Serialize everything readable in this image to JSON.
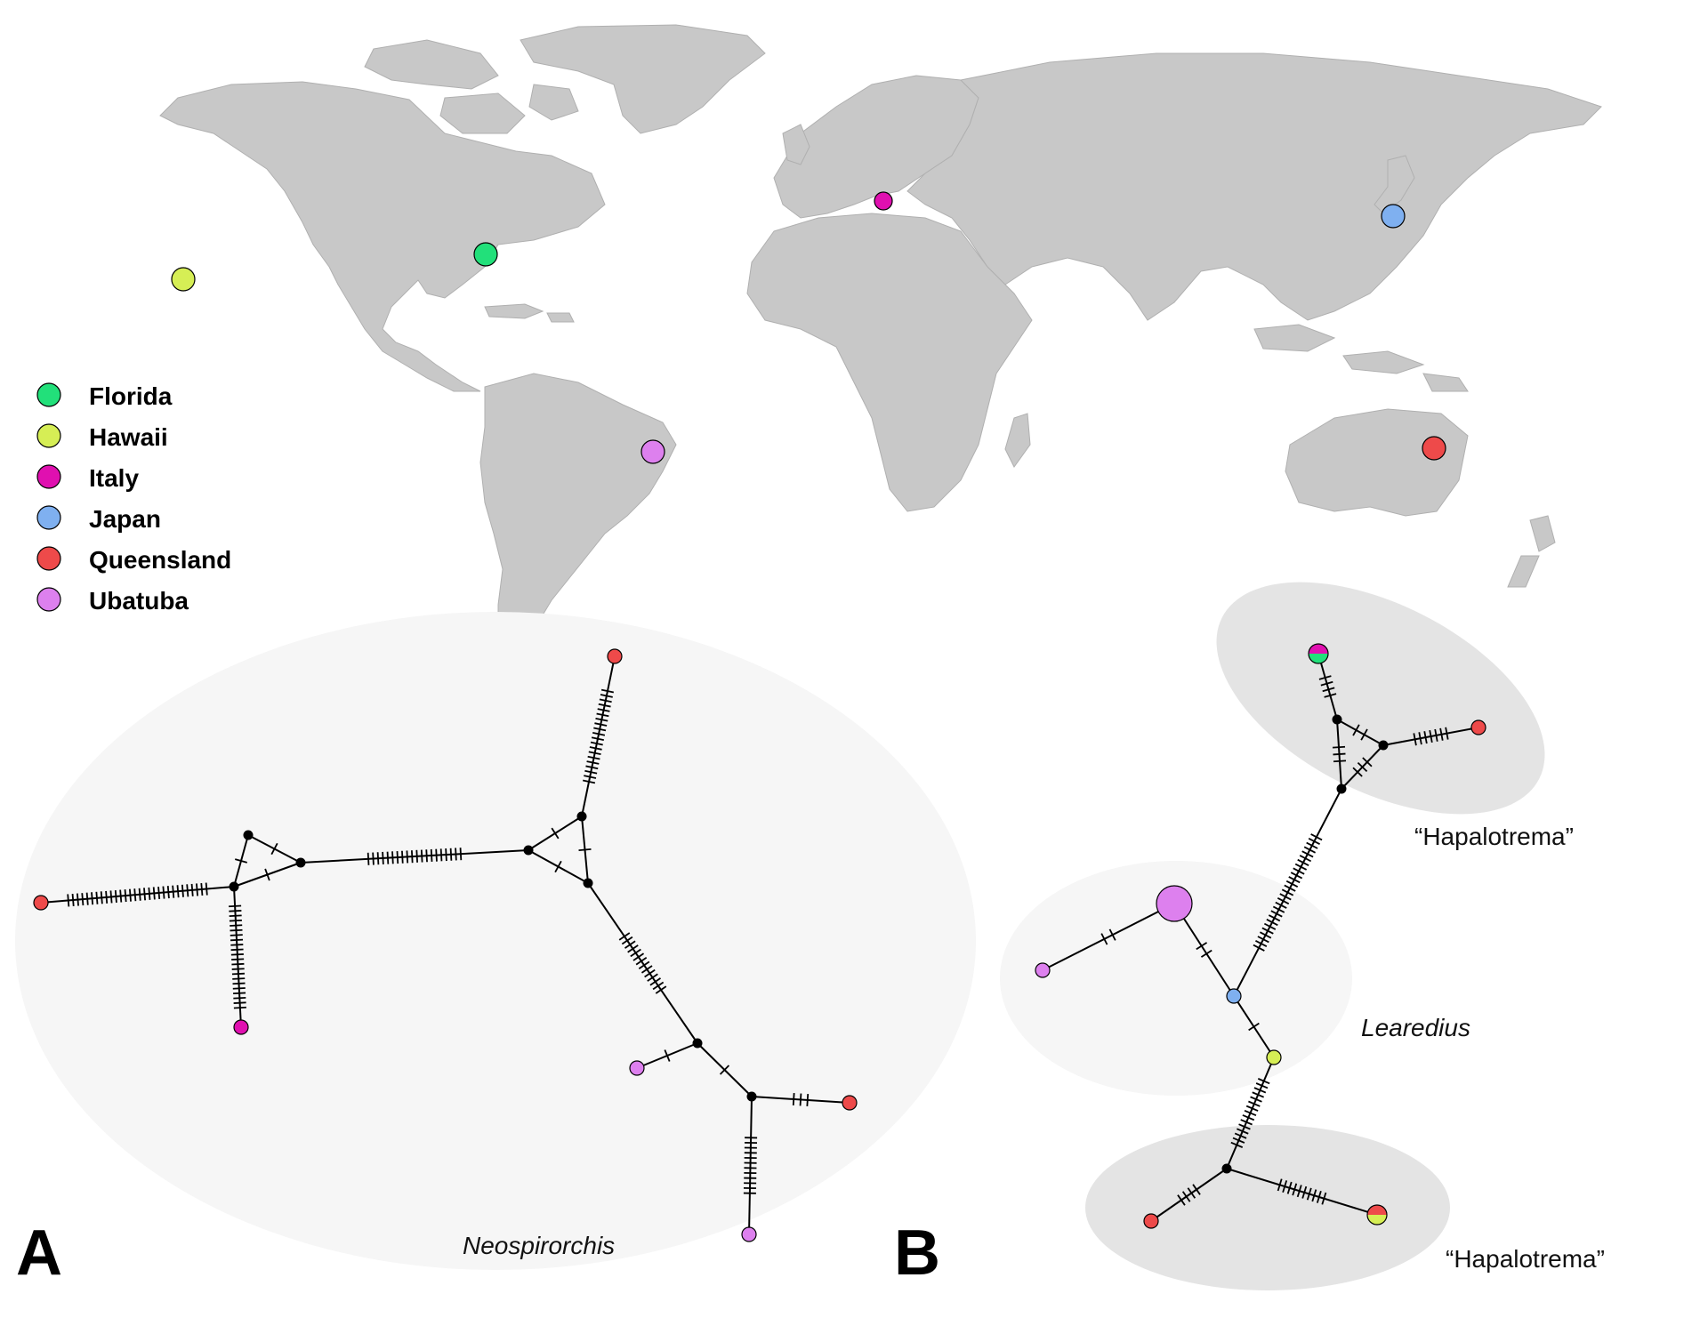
{
  "colors": {
    "land": "#c8c8c8",
    "Florida": "#22e07a",
    "Hawaii": "#d6ee55",
    "Italy": "#e010b0",
    "Japan": "#7fb0f0",
    "Queensland": "#ee4a4a",
    "Ubatuba": "#dd80ee",
    "median": "#000000"
  },
  "legend": [
    {
      "label": "Florida",
      "color_key": "Florida"
    },
    {
      "label": "Hawaii",
      "color_key": "Hawaii"
    },
    {
      "label": "Italy",
      "color_key": "Italy"
    },
    {
      "label": "Japan",
      "color_key": "Japan"
    },
    {
      "label": "Queensland",
      "color_key": "Queensland"
    },
    {
      "label": "Ubatuba",
      "color_key": "Ubatuba"
    }
  ],
  "panels": {
    "A": {
      "letter": "A",
      "group_label": "Neospirorchis"
    },
    "B": {
      "letter": "B",
      "labels": [
        "“Hapalotrema”",
        "Learedius",
        "“Hapalotrema”"
      ]
    }
  }
}
